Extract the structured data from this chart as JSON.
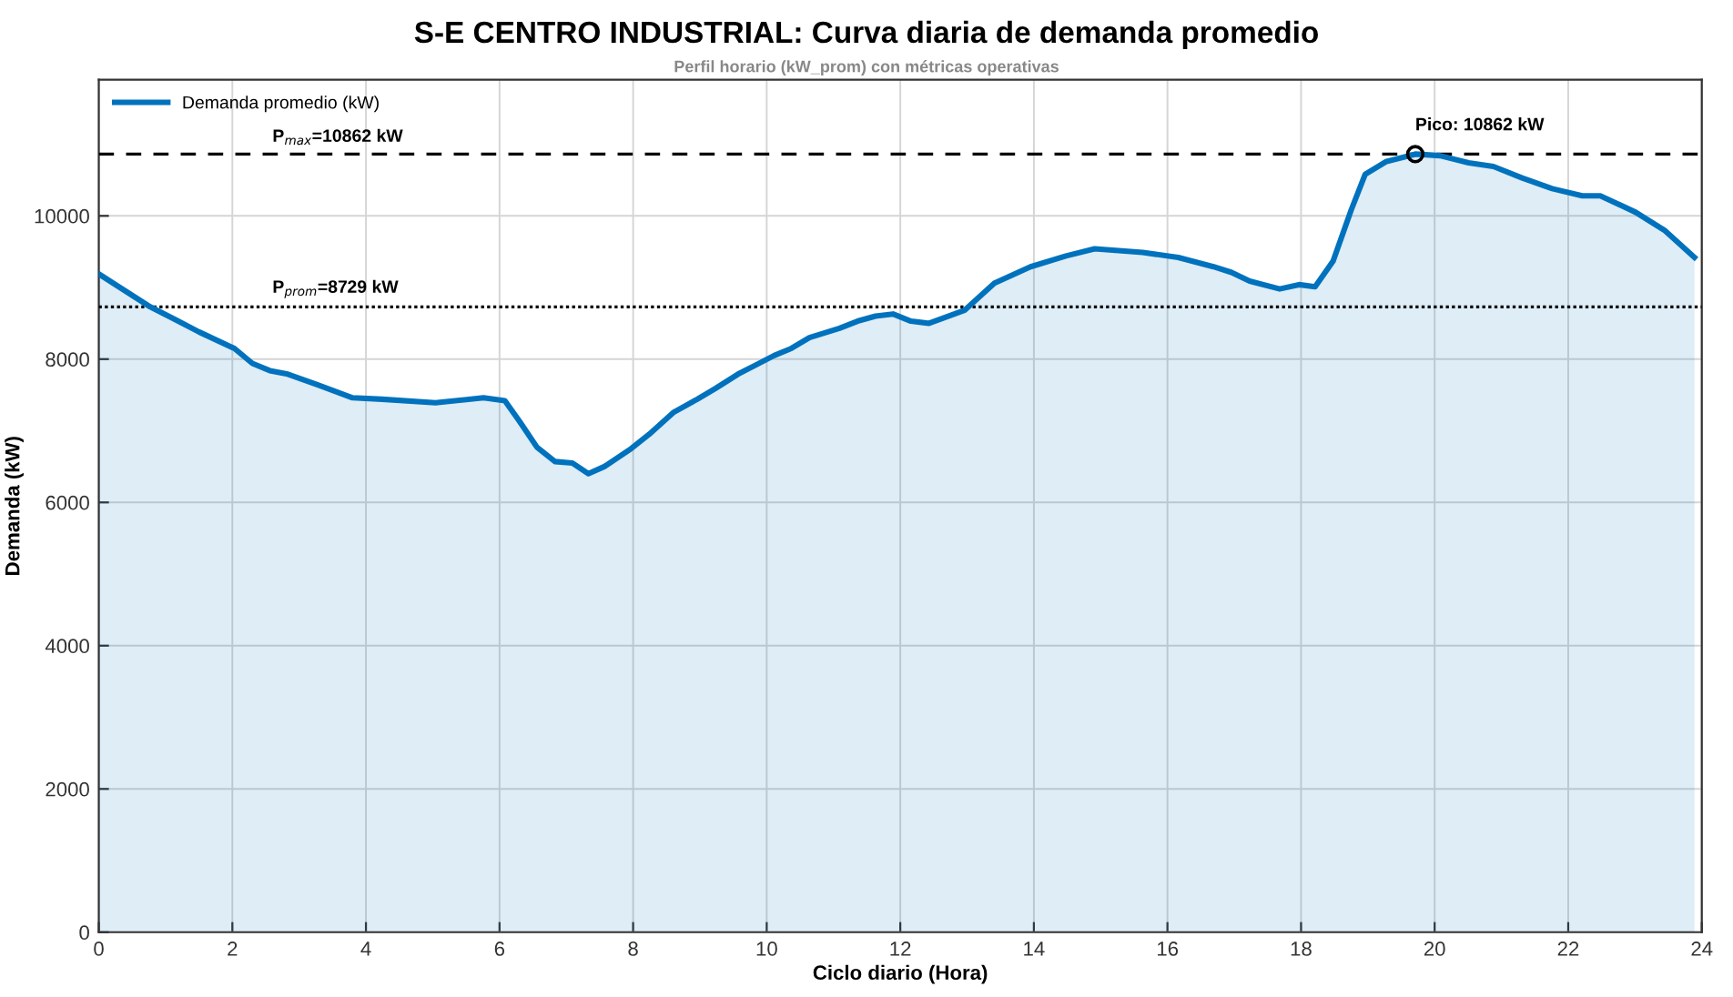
{
  "chart_data": {
    "type": "area",
    "title": "S-E CENTRO INDUSTRIAL: Curva diaria de demanda promedio",
    "subtitle": "Perfil horario (kW_prom) con métricas operativas",
    "xlabel": "Ciclo diario (Hora)",
    "ylabel": "Demanda (kW)",
    "series": [
      {
        "name": "Demanda promedio (kW)",
        "color": "#0072bd",
        "x": [
          0,
          0.35,
          0.77,
          1.15,
          1.5,
          2.03,
          2.3,
          2.56,
          2.83,
          3.28,
          3.8,
          4.24,
          5.04,
          5.76,
          6.08,
          6.3,
          6.56,
          6.83,
          7.09,
          7.33,
          7.57,
          7.97,
          8.24,
          8.61,
          8.96,
          9.23,
          9.57,
          9.84,
          10.11,
          10.37,
          10.64,
          11.09,
          11.36,
          11.63,
          11.89,
          12.16,
          12.43,
          12.96,
          13.41,
          13.95,
          14.48,
          14.91,
          15.63,
          16.16,
          16.69,
          16.96,
          17.23,
          17.68,
          17.97,
          18.21,
          18.48,
          18.75,
          18.96,
          19.28,
          19.71,
          20.08,
          20.51,
          20.88,
          21.31,
          21.76,
          22.21,
          22.48,
          23.01,
          23.44,
          23.89
        ],
        "values": [
          9190,
          8980,
          8730,
          8550,
          8380,
          8150,
          7940,
          7840,
          7790,
          7640,
          7460,
          7440,
          7390,
          7460,
          7420,
          7130,
          6770,
          6570,
          6550,
          6400,
          6500,
          6750,
          6950,
          7260,
          7440,
          7590,
          7790,
          7920,
          8050,
          8150,
          8300,
          8430,
          8530,
          8600,
          8630,
          8530,
          8500,
          8680,
          9060,
          9290,
          9440,
          9540,
          9490,
          9420,
          9290,
          9210,
          9090,
          8980,
          9040,
          9010,
          9370,
          10080,
          10580,
          10760,
          10862,
          10840,
          10740,
          10690,
          10530,
          10380,
          10280,
          10280,
          10050,
          9800,
          9420
        ]
      }
    ],
    "ref_lines": [
      {
        "axis": "y",
        "value": 10862,
        "label": "P$_{max}$=10862 kW",
        "color": "#000000",
        "line_style": "dashed"
      },
      {
        "axis": "y",
        "value": 8729,
        "label": "P$_{prom}$=8729 kW",
        "color": "#000000",
        "line_style": "dotted"
      }
    ],
    "annotations": [
      {
        "text": "Pico: 10862 kW",
        "x": 19.71,
        "y": 10862
      }
    ],
    "xlim": [
      0,
      24
    ],
    "xticks": [
      0,
      2,
      4,
      6,
      8,
      10,
      12,
      14,
      16,
      18,
      20,
      22,
      24
    ],
    "ylim": [
      0,
      11900
    ],
    "yticks": [
      0,
      2000,
      4000,
      6000,
      8000,
      10000
    ],
    "grid": true,
    "legend": "top left"
  }
}
